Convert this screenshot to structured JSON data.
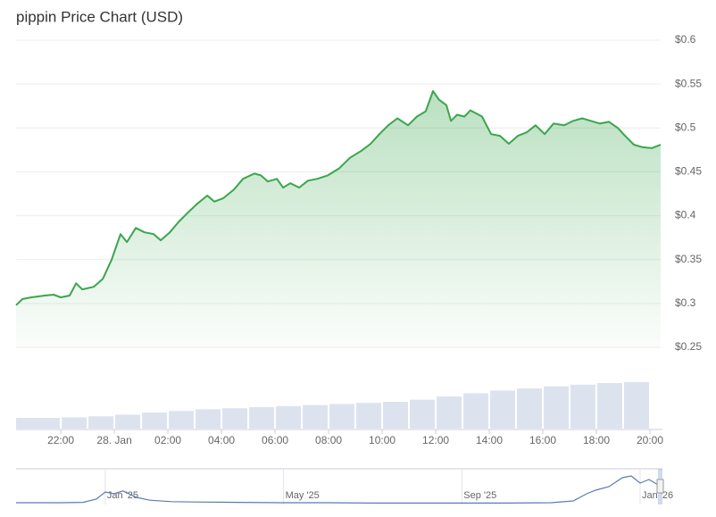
{
  "chart_data": {
    "type": "area",
    "title": "pippin Price Chart (USD)",
    "series": [
      {
        "name": "pippin",
        "color": "#3aa64c",
        "x": [
          20.33,
          20.57,
          20.9,
          21.4,
          21.73,
          22,
          22.33,
          22.57,
          22.8,
          23.23,
          23.57,
          23.9,
          24.23,
          24.47,
          24.8,
          25.13,
          25.47,
          25.73,
          26.07,
          26.4,
          26.73,
          27.07,
          27.47,
          27.73,
          28.07,
          28.47,
          28.8,
          29.23,
          29.47,
          29.73,
          30.07,
          30.3,
          30.57,
          30.9,
          31.23,
          31.57,
          31.97,
          32.4,
          32.8,
          33.23,
          33.57,
          33.9,
          34.23,
          34.57,
          34.97,
          35.3,
          35.63,
          35.9,
          36.13,
          36.4,
          36.57,
          36.8,
          37.07,
          37.3,
          37.73,
          38.07,
          38.4,
          38.73,
          39.07,
          39.4,
          39.73,
          40.07,
          40.4,
          40.8,
          41.13,
          41.47,
          41.8,
          42.13,
          42.47,
          42.8,
          43.07,
          43.4,
          43.73,
          44.07,
          44.4
        ],
        "values": [
          0.298,
          0.305,
          0.307,
          0.309,
          0.31,
          0.307,
          0.309,
          0.323,
          0.316,
          0.319,
          0.328,
          0.35,
          0.379,
          0.37,
          0.386,
          0.381,
          0.379,
          0.372,
          0.381,
          0.393,
          0.403,
          0.413,
          0.423,
          0.416,
          0.42,
          0.43,
          0.442,
          0.448,
          0.446,
          0.439,
          0.442,
          0.432,
          0.437,
          0.432,
          0.44,
          0.442,
          0.446,
          0.454,
          0.466,
          0.474,
          0.482,
          0.493,
          0.503,
          0.511,
          0.503,
          0.513,
          0.519,
          0.542,
          0.532,
          0.526,
          0.508,
          0.515,
          0.513,
          0.52,
          0.513,
          0.493,
          0.491,
          0.482,
          0.491,
          0.495,
          0.503,
          0.493,
          0.505,
          0.503,
          0.508,
          0.511,
          0.508,
          0.505,
          0.507,
          0.5,
          0.491,
          0.481,
          0.478,
          0.477,
          0.481
        ]
      }
    ],
    "xlim": [
      20.33,
      44.4
    ],
    "xticks": [
      {
        "value": 22,
        "label": "22:00"
      },
      {
        "value": 24,
        "label": "28. Jan"
      },
      {
        "value": 26,
        "label": "02:00"
      },
      {
        "value": 28,
        "label": "04:00"
      },
      {
        "value": 30,
        "label": "06:00"
      },
      {
        "value": 32,
        "label": "08:00"
      },
      {
        "value": 34,
        "label": "10:00"
      },
      {
        "value": 36,
        "label": "12:00"
      },
      {
        "value": 38,
        "label": "14:00"
      },
      {
        "value": 40,
        "label": "16:00"
      },
      {
        "value": 42,
        "label": "18:00"
      },
      {
        "value": 44,
        "label": "20:00"
      }
    ],
    "ylim": [
      0.25,
      0.6
    ],
    "yticks": [
      {
        "value": 0.25,
        "label": "$0.25"
      },
      {
        "value": 0.3,
        "label": "$0.3"
      },
      {
        "value": 0.35,
        "label": "$0.35"
      },
      {
        "value": 0.4,
        "label": "$0.4"
      },
      {
        "value": 0.45,
        "label": "$0.45"
      },
      {
        "value": 0.5,
        "label": "$0.5"
      },
      {
        "value": 0.55,
        "label": "$0.55"
      },
      {
        "value": 0.6,
        "label": "$0.6"
      }
    ],
    "grid": true,
    "volume": {
      "color": "#dde3ee",
      "ylim": [
        0,
        100
      ],
      "x": [
        20.5,
        21.5,
        22.5,
        23.5,
        24.5,
        25.5,
        26.5,
        27.5,
        28.5,
        29.5,
        30.5,
        31.5,
        32.5,
        33.5,
        34.5,
        35.5,
        36.5,
        37.5,
        38.5,
        39.5,
        40.5,
        41.5,
        42.5,
        43.5
      ],
      "values": [
        20,
        20,
        21,
        23,
        26,
        30,
        33,
        36,
        38,
        40,
        42,
        44,
        46,
        48,
        50,
        54,
        60,
        66,
        71,
        75,
        79,
        82,
        85,
        87
      ]
    },
    "navigator": {
      "color": "#5b7bb0",
      "ylim": [
        0,
        100
      ],
      "xlim": [
        -2,
        12.5
      ],
      "xticks": [
        {
          "value": 0,
          "label": "Jan '25"
        },
        {
          "value": 4,
          "label": "May '25"
        },
        {
          "value": 8,
          "label": "Sep '25"
        },
        {
          "value": 12,
          "label": "Jan '26"
        }
      ],
      "x": [
        -2,
        -1,
        -0.5,
        -0.2,
        0,
        0.2,
        0.4,
        0.7,
        1,
        1.5,
        2,
        3,
        4,
        5,
        6,
        7,
        8,
        9,
        10,
        10.5,
        10.8,
        11,
        11.3,
        11.6,
        11.8,
        12,
        12.2,
        12.4,
        12.5
      ],
      "values": [
        5,
        5,
        6,
        15,
        35,
        30,
        38,
        20,
        12,
        8,
        7,
        6,
        5,
        5,
        4,
        4,
        4,
        4,
        5,
        10,
        30,
        40,
        50,
        75,
        80,
        60,
        70,
        55,
        70
      ]
    }
  }
}
